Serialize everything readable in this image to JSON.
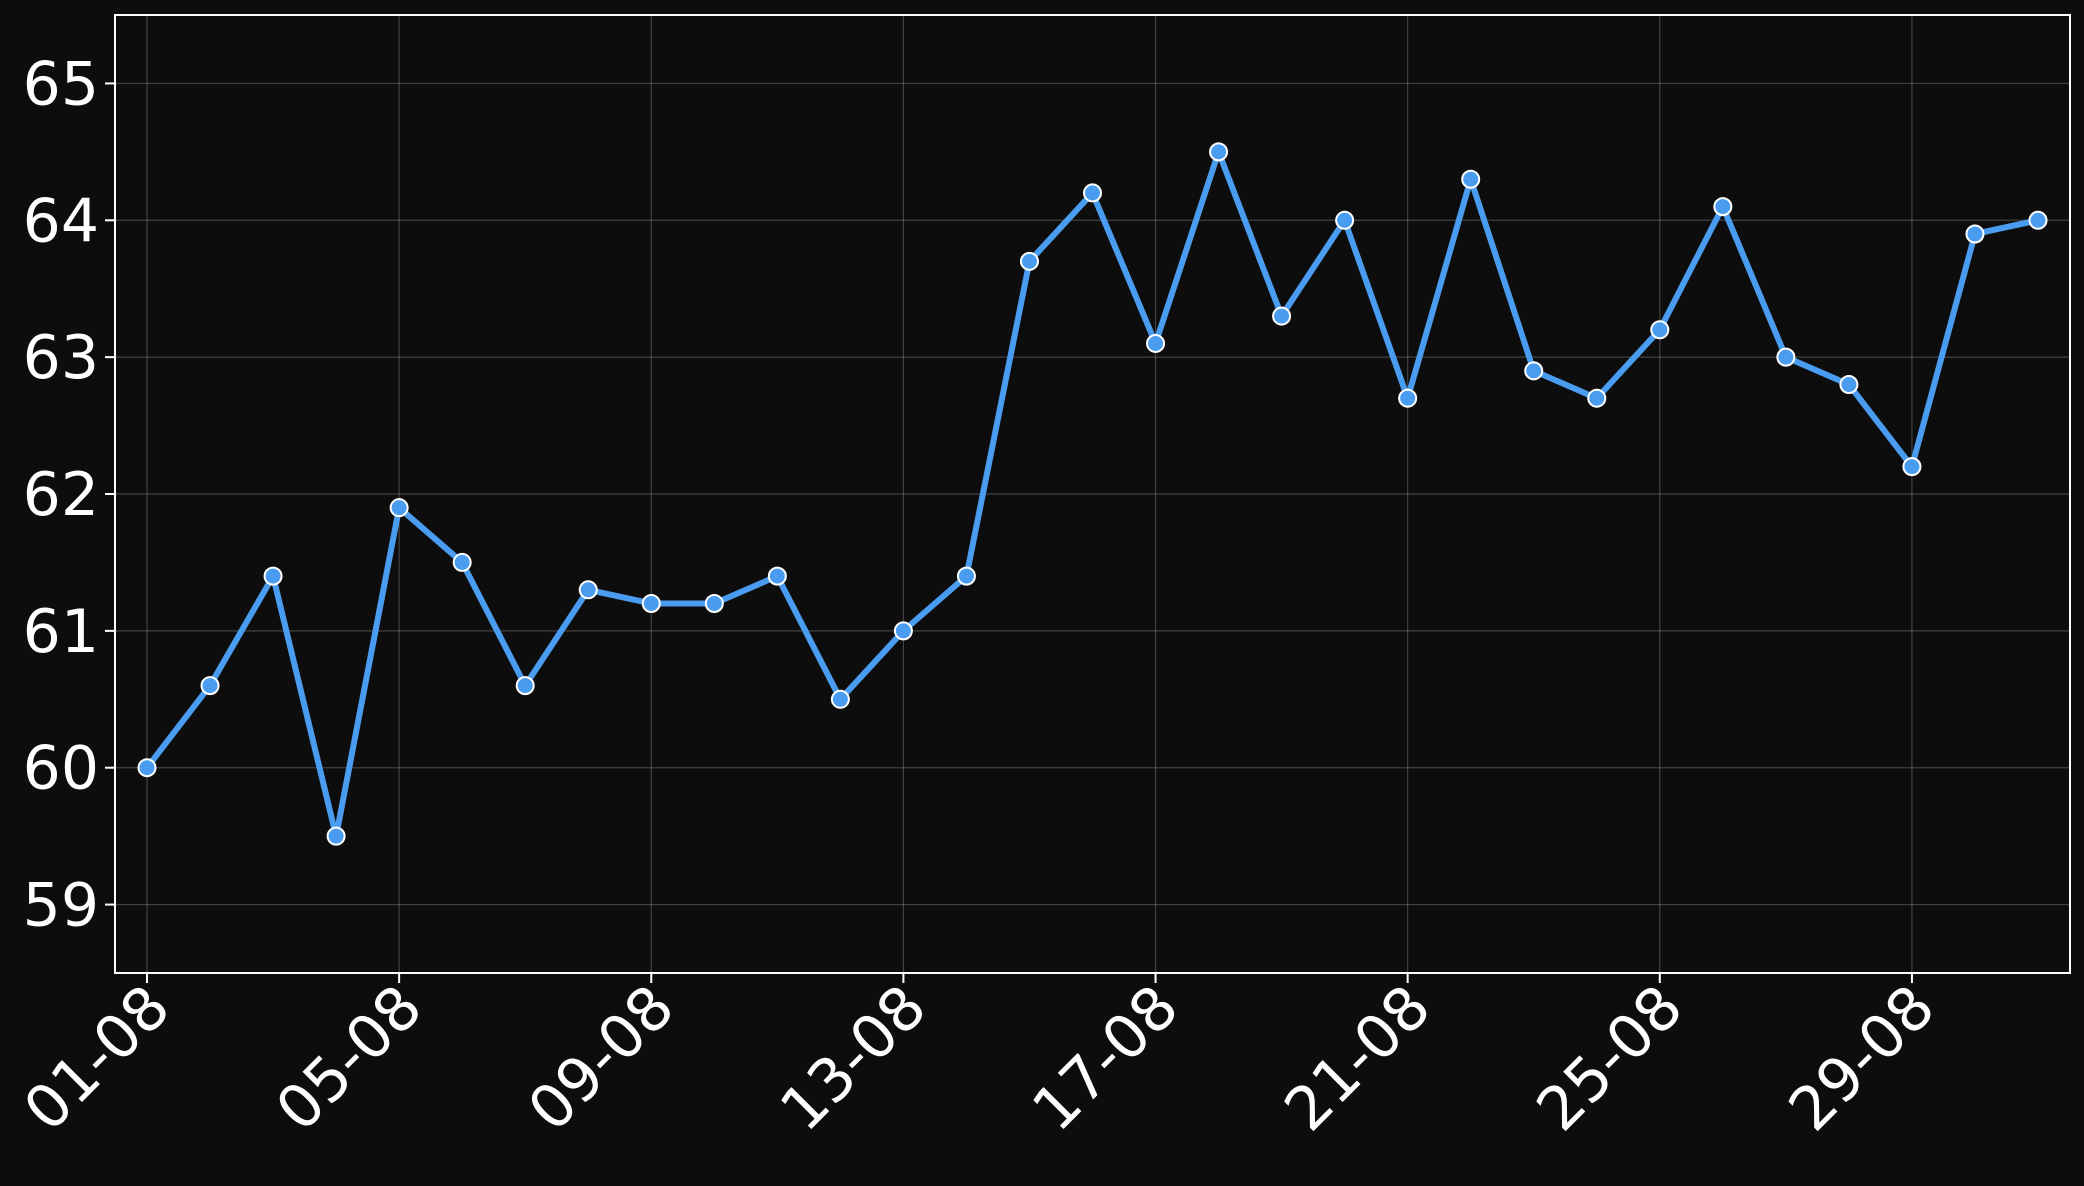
{
  "chart_data": {
    "type": "line",
    "title": "",
    "xlabel": "",
    "ylabel": "",
    "x": [
      "01-08",
      "02-08",
      "03-08",
      "04-08",
      "05-08",
      "06-08",
      "07-08",
      "08-08",
      "09-08",
      "10-08",
      "11-08",
      "12-08",
      "13-08",
      "14-08",
      "15-08",
      "16-08",
      "17-08",
      "18-08",
      "19-08",
      "20-08",
      "21-08",
      "22-08",
      "23-08",
      "24-08",
      "25-08",
      "26-08",
      "27-08",
      "28-08",
      "29-08",
      "30-08",
      "31-08"
    ],
    "x_tick_labels": [
      "01-08",
      "05-08",
      "09-08",
      "13-08",
      "17-08",
      "21-08",
      "25-08",
      "29-08"
    ],
    "y_tick_labels": [
      "59",
      "60",
      "61",
      "62",
      "63",
      "64",
      "65"
    ],
    "series": [
      {
        "values": [
          60.0,
          60.6,
          61.4,
          59.5,
          61.9,
          61.5,
          60.6,
          61.3,
          61.2,
          61.2,
          61.4,
          60.5,
          61.0,
          61.4,
          63.7,
          64.2,
          63.1,
          64.5,
          63.3,
          64.0,
          62.7,
          64.3,
          62.9,
          62.7,
          63.2,
          64.1,
          63.0,
          62.8,
          62.2,
          63.9,
          64.0
        ]
      }
    ],
    "ylim": [
      58.5,
      65.5
    ],
    "grid": true,
    "legend": "none",
    "colors": {
      "background": "#0d0d0d",
      "line": "#4a9cf0",
      "marker_fill": "#4a9cf0",
      "marker_edge": "#ffffff",
      "axes": "#ffffff",
      "text": "#ffffff"
    }
  }
}
